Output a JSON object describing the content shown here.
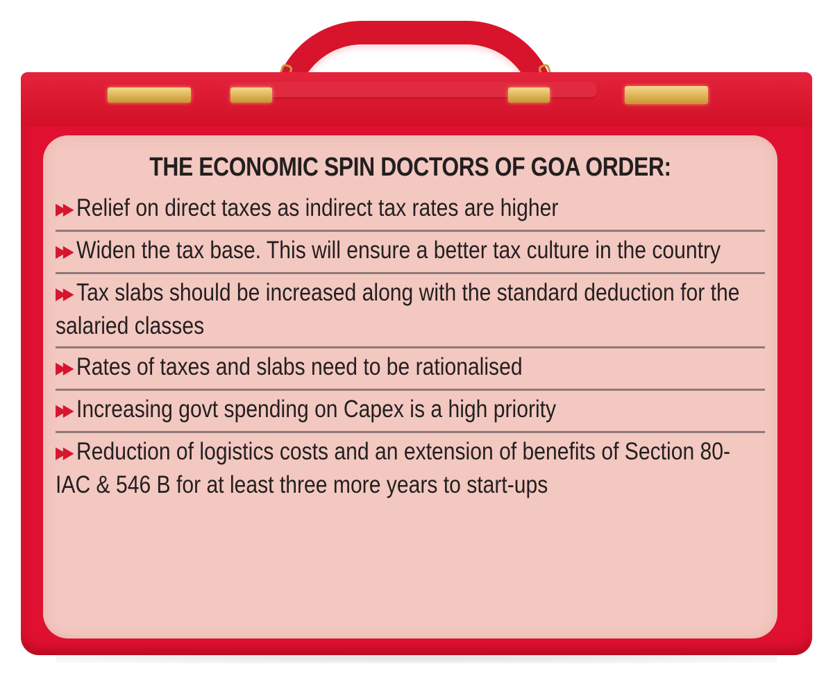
{
  "graphic": {
    "subject": "red budget briefcase",
    "colors": {
      "case_red": "#e01030",
      "panel_pink": "#f3c8c0",
      "bullet_red": "#d6162e",
      "text": "#231f20",
      "divider": "#8e7a78",
      "clasp_gold": "#c9962e"
    }
  },
  "panel": {
    "title": "THE ECONOMIC SPIN DOCTORS OF GOA ORDER:",
    "bullet_icon": "double-chevron-right",
    "bullet_glyph": "▶▶",
    "items": [
      {
        "text": "Relief on direct taxes as indirect tax rates are higher"
      },
      {
        "text": "Widen the tax base. This will ensure a better tax culture in the country"
      },
      {
        "text": "Tax slabs should be increased along with the standard deduction for the salaried classes"
      },
      {
        "text": "Rates of taxes and slabs need to be rationalised"
      },
      {
        "text": "Increasing govt spending on Capex is a high priority"
      },
      {
        "text": "Reduction of logistics costs and an extension of benefits of Section 80-IAC & 546 B for at least three more years to start-ups"
      }
    ]
  }
}
